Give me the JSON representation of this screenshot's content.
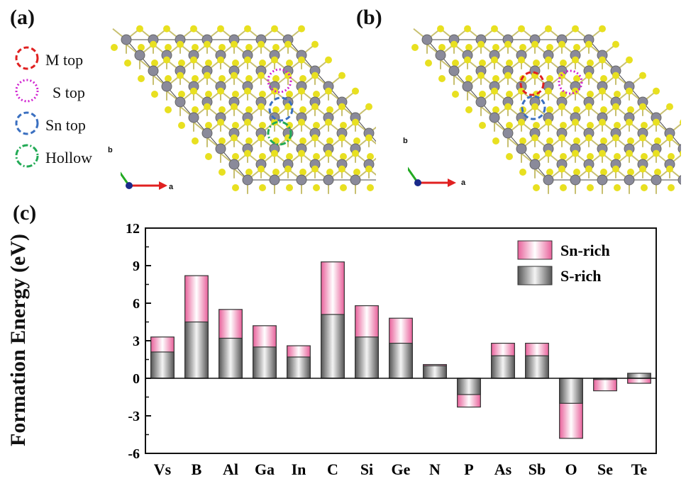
{
  "panels": {
    "a": "(a)",
    "b": "(b)",
    "c": "(c)"
  },
  "site_legend": [
    {
      "label": "M top",
      "color": "#e02020",
      "dash": "dashed"
    },
    {
      "label": "S top",
      "color": "#d020d0",
      "dash": "dotted"
    },
    {
      "label": "Sn top",
      "color": "#3a6fc0",
      "dash": "dashed"
    },
    {
      "label": "Hollow",
      "color": "#22aa55",
      "dash": "dashdot"
    }
  ],
  "axes": {
    "a": "a",
    "b": "b"
  },
  "colors": {
    "sulfur": "#e8e020",
    "tin": "#8a8a9a",
    "sn_rich": "#f080b0",
    "s_rich": "#707070"
  },
  "chart_data": {
    "type": "bar",
    "ylabel": "Formation Energy (eV)",
    "ylim": [
      -6,
      12
    ],
    "yticks": [
      -6,
      -3,
      0,
      3,
      6,
      9,
      12
    ],
    "categories": [
      "Vs",
      "B",
      "Al",
      "Ga",
      "In",
      "C",
      "Si",
      "Ge",
      "N",
      "P",
      "As",
      "Sb",
      "O",
      "Se",
      "Te"
    ],
    "series": [
      {
        "name": "Sn-rich",
        "values": [
          3.3,
          8.2,
          5.5,
          4.2,
          2.6,
          9.3,
          5.8,
          4.8,
          1.1,
          -2.3,
          2.8,
          2.8,
          -4.8,
          -1.0,
          -0.4
        ]
      },
      {
        "name": "S-rich",
        "values": [
          2.1,
          4.5,
          3.2,
          2.5,
          1.7,
          5.1,
          3.3,
          2.8,
          1.0,
          -1.3,
          1.8,
          1.8,
          -2.0,
          -0.1,
          0.4
        ]
      }
    ],
    "legend": "top-right"
  }
}
